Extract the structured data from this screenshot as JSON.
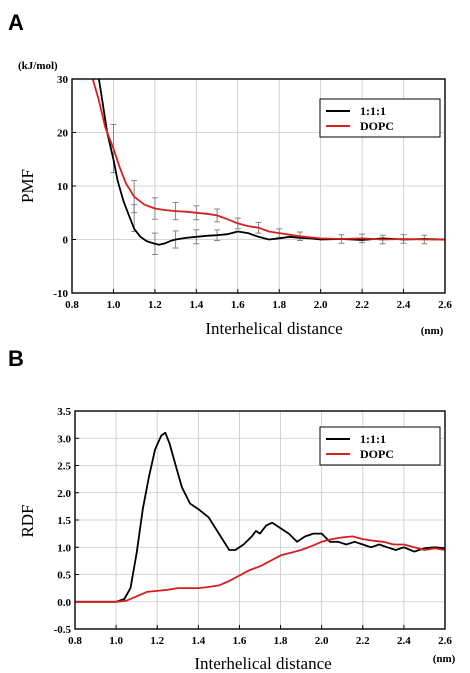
{
  "colors": {
    "black_series": "#000000",
    "red_series": "#d42020",
    "error_bar": "#7a7a7a",
    "grid": "#c8c8c8"
  },
  "chart_data": [
    {
      "panel": "A",
      "type": "line",
      "ylabel": "PMF",
      "yunit": "(kJ/mol)",
      "xlabel": "Interhelical distance",
      "xunit": "(nm)",
      "xlim": [
        0.8,
        2.6
      ],
      "ylim": [
        -10,
        30
      ],
      "xticks": [
        "0.8",
        "1.0",
        "1.2",
        "1.4",
        "1.6",
        "1.8",
        "2.0",
        "2.2",
        "2.4",
        "2.6"
      ],
      "yticks": [
        "-10",
        "0",
        "10",
        "20",
        "30"
      ],
      "grid": true,
      "legend": "top-right",
      "series": [
        {
          "name": "1:1:1",
          "color": "#000000",
          "x": [
            0.93,
            0.95,
            0.97,
            1.0,
            1.02,
            1.05,
            1.08,
            1.1,
            1.13,
            1.16,
            1.2,
            1.22,
            1.25,
            1.28,
            1.3,
            1.35,
            1.4,
            1.45,
            1.5,
            1.55,
            1.6,
            1.65,
            1.7,
            1.75,
            1.8,
            1.85,
            1.9,
            1.95,
            2.0,
            2.1,
            2.2,
            2.3,
            2.4,
            2.5,
            2.6
          ],
          "y": [
            30,
            25,
            20,
            15,
            11,
            7,
            4,
            2,
            0.5,
            -0.3,
            -0.8,
            -1.0,
            -0.7,
            -0.2,
            0.0,
            0.3,
            0.5,
            0.7,
            0.8,
            1.0,
            1.5,
            1.2,
            0.5,
            0.0,
            0.2,
            0.5,
            0.3,
            0.2,
            0.0,
            0.1,
            -0.1,
            0.2,
            0.0,
            0.1,
            0.0
          ]
        },
        {
          "name": "DOPC",
          "color": "#d42020",
          "x": [
            0.9,
            0.93,
            0.96,
            1.0,
            1.03,
            1.06,
            1.1,
            1.15,
            1.2,
            1.25,
            1.3,
            1.35,
            1.4,
            1.45,
            1.5,
            1.55,
            1.6,
            1.65,
            1.7,
            1.75,
            1.8,
            1.85,
            1.9,
            2.0,
            2.1,
            2.2,
            2.3,
            2.4,
            2.5,
            2.6
          ],
          "y": [
            30,
            26,
            21,
            17,
            13.5,
            10.5,
            8,
            6.5,
            5.8,
            5.5,
            5.3,
            5.2,
            5.0,
            4.8,
            4.5,
            3.8,
            3.0,
            2.5,
            2.2,
            1.5,
            1.2,
            0.9,
            0.6,
            0.2,
            0.1,
            0.2,
            0.0,
            0.1,
            0.0,
            0.0
          ]
        }
      ],
      "error_bars": [
        {
          "x": 1.0,
          "y": 17,
          "err": 4.5
        },
        {
          "x": 1.1,
          "y": 8,
          "err": 3.0
        },
        {
          "x": 1.2,
          "y": 5.8,
          "err": 2.0
        },
        {
          "x": 1.3,
          "y": 5.3,
          "err": 1.6
        },
        {
          "x": 1.4,
          "y": 5.0,
          "err": 1.3
        },
        {
          "x": 1.5,
          "y": 4.5,
          "err": 1.2
        },
        {
          "x": 1.6,
          "y": 3.0,
          "err": 1.0
        },
        {
          "x": 1.7,
          "y": 2.2,
          "err": 1.0
        },
        {
          "x": 1.8,
          "y": 1.2,
          "err": 0.8
        },
        {
          "x": 1.9,
          "y": 0.6,
          "err": 0.8
        },
        {
          "x": 2.1,
          "y": 0.1,
          "err": 0.8
        },
        {
          "x": 2.2,
          "y": 0.2,
          "err": 0.8
        },
        {
          "x": 2.3,
          "y": 0.0,
          "err": 0.8
        },
        {
          "x": 2.4,
          "y": 0.1,
          "err": 0.8
        },
        {
          "x": 2.5,
          "y": 0.0,
          "err": 0.8
        },
        {
          "x": 1.1,
          "y": 4,
          "err": 2.5
        },
        {
          "x": 1.2,
          "y": -0.8,
          "err": 2.0
        },
        {
          "x": 1.3,
          "y": 0.0,
          "err": 1.6
        },
        {
          "x": 1.4,
          "y": 0.5,
          "err": 1.3
        },
        {
          "x": 1.5,
          "y": 0.8,
          "err": 1.0
        }
      ]
    },
    {
      "panel": "B",
      "type": "line",
      "ylabel": "RDF",
      "xlabel": "Interhelical distance",
      "xunit": "(nm)",
      "xlim": [
        0.8,
        2.6
      ],
      "ylim": [
        -0.5,
        3.5
      ],
      "xticks": [
        "0.8",
        "1.0",
        "1.2",
        "1.4",
        "1.6",
        "1.8",
        "2.0",
        "2.2",
        "2.4",
        "2.6"
      ],
      "yticks": [
        "-0.5",
        "0.0",
        "0.5",
        "1.0",
        "1.5",
        "2.0",
        "2.5",
        "3.0",
        "3.5"
      ],
      "grid": true,
      "legend": "top-right",
      "series": [
        {
          "name": "1:1:1",
          "color": "#000000",
          "x": [
            0.8,
            1.0,
            1.04,
            1.07,
            1.1,
            1.13,
            1.16,
            1.19,
            1.22,
            1.24,
            1.26,
            1.29,
            1.32,
            1.36,
            1.4,
            1.45,
            1.5,
            1.55,
            1.58,
            1.62,
            1.66,
            1.68,
            1.7,
            1.73,
            1.76,
            1.8,
            1.84,
            1.88,
            1.92,
            1.96,
            2.0,
            2.04,
            2.08,
            2.12,
            2.16,
            2.2,
            2.24,
            2.28,
            2.32,
            2.36,
            2.4,
            2.45,
            2.5,
            2.55,
            2.6
          ],
          "y": [
            0.0,
            0.0,
            0.05,
            0.25,
            0.9,
            1.7,
            2.3,
            2.8,
            3.05,
            3.1,
            2.9,
            2.5,
            2.1,
            1.8,
            1.7,
            1.55,
            1.25,
            0.95,
            0.95,
            1.05,
            1.2,
            1.3,
            1.25,
            1.4,
            1.45,
            1.35,
            1.25,
            1.1,
            1.2,
            1.25,
            1.25,
            1.1,
            1.1,
            1.05,
            1.1,
            1.05,
            1.0,
            1.05,
            1.0,
            0.95,
            1.0,
            0.92,
            0.98,
            1.0,
            0.98
          ]
        },
        {
          "name": "DOPC",
          "color": "#d42020",
          "x": [
            0.8,
            1.0,
            1.05,
            1.1,
            1.15,
            1.2,
            1.25,
            1.3,
            1.35,
            1.4,
            1.45,
            1.5,
            1.55,
            1.6,
            1.65,
            1.7,
            1.75,
            1.8,
            1.85,
            1.9,
            1.95,
            2.0,
            2.05,
            2.1,
            2.15,
            2.2,
            2.25,
            2.3,
            2.35,
            2.4,
            2.45,
            2.5,
            2.55,
            2.6
          ],
          "y": [
            0.0,
            0.0,
            0.02,
            0.1,
            0.18,
            0.2,
            0.22,
            0.25,
            0.25,
            0.25,
            0.27,
            0.3,
            0.38,
            0.48,
            0.58,
            0.65,
            0.75,
            0.85,
            0.9,
            0.95,
            1.02,
            1.1,
            1.15,
            1.18,
            1.2,
            1.15,
            1.12,
            1.1,
            1.05,
            1.05,
            1.0,
            0.95,
            0.98,
            0.95
          ]
        }
      ]
    }
  ]
}
